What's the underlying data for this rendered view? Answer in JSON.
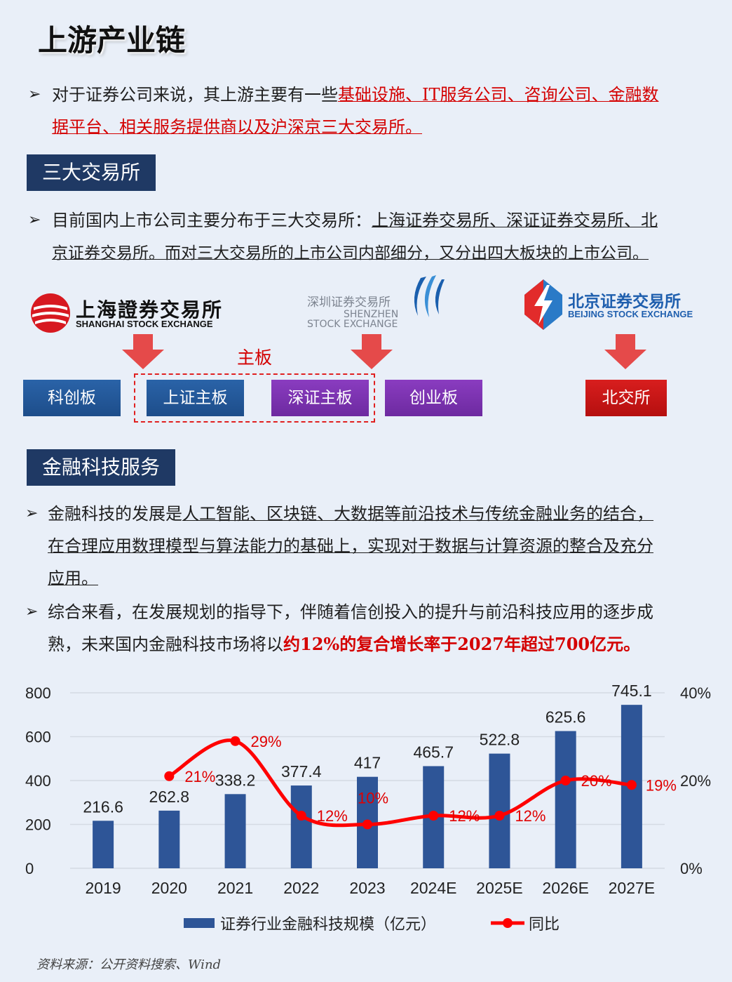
{
  "title": "上游产业链",
  "para1": {
    "plain": "对于证券公司来说，其上游主要有一些",
    "highlight1": "基础设施、IT服务公司、咨询公司、金融数",
    "highlight2": "据平台、相关服务提供商以及沪深京三大交易所。"
  },
  "section1": "三大交易所",
  "para2": {
    "plain": "目前国内上市公司主要分布于三大交易所：",
    "ul1": "上海证券交易所、深证证券交易所、北",
    "ul2": "京证券交易所。而对三大交易所的上市公司内部细分，又分出四大板块的上市公司。"
  },
  "logos": {
    "shanghai_cn": "上海證券交易所",
    "shanghai_en": "SHANGHAI STOCK EXCHANGE",
    "shenzhen_cn": "深圳证券交易所",
    "shenzhen_en1": "SHENZHEN",
    "shenzhen_en2": "STOCK EXCHANGE",
    "beijing_cn": "北京证券交易所",
    "beijing_en": "BEIJING STOCK EXCHANGE"
  },
  "main_board_label": "主板",
  "boards": {
    "kechuang": "科创板",
    "sz_main": "上证主板",
    "shen_main": "深证主板",
    "chuangye": "创业板",
    "beijiao": "北交所"
  },
  "section2": "金融科技服务",
  "para3": {
    "plain": "金融科技的发展是",
    "ul1": "人工智能、区块链、大数据等前沿技术与传统金融业务的结合，",
    "ul2": "在合理应用数理模型与算法能力的基础上，实现对于数据与计算资源的整合及充分",
    "ul3": "应用。"
  },
  "para4": {
    "line1": "综合来看，在发展规划的指导下，伴随着信创投入的提升与前沿科技应用的逐步成",
    "line2_plain": "熟，未来国内金融科技市场将以",
    "line2_red": "约12%的复合增长率于2027年超过700亿元。"
  },
  "chart_data": {
    "type": "bar",
    "categories": [
      "2019",
      "2020",
      "2021",
      "2022",
      "2023",
      "2024E",
      "2025E",
      "2026E",
      "2027E"
    ],
    "series": [
      {
        "name": "证券行业金融科技规模（亿元）",
        "type": "bar",
        "axis": "left",
        "values": [
          216.6,
          262.8,
          338.2,
          377.4,
          417,
          465.7,
          522.8,
          625.6,
          745.1
        ],
        "labels": [
          "216.6",
          "262.8",
          "338.2",
          "377.4",
          "417",
          "465.7",
          "522.8",
          "625.6",
          "745.1"
        ]
      },
      {
        "name": "同比",
        "type": "line",
        "axis": "right",
        "values": [
          null,
          21,
          29,
          12,
          10,
          12,
          12,
          20,
          19
        ],
        "labels": [
          null,
          "21%",
          "29%",
          "12%",
          "10%",
          "12%",
          "12%",
          "20%",
          "19%"
        ]
      }
    ],
    "ylim": [
      0,
      800
    ],
    "y_ticks": [
      "800",
      "600",
      "400",
      "200",
      "0"
    ],
    "y2lim": [
      0,
      40
    ],
    "y2_ticks": [
      "40%",
      "20%",
      "0%"
    ],
    "grid": true,
    "legend_position": "bottom",
    "colors": {
      "bar": "#2e5597",
      "line": "#ff0000",
      "label": "#222222",
      "line_label": "#e00000",
      "grid": "#d4dae3"
    }
  },
  "source": "资料来源：公开资料搜索、Wind"
}
